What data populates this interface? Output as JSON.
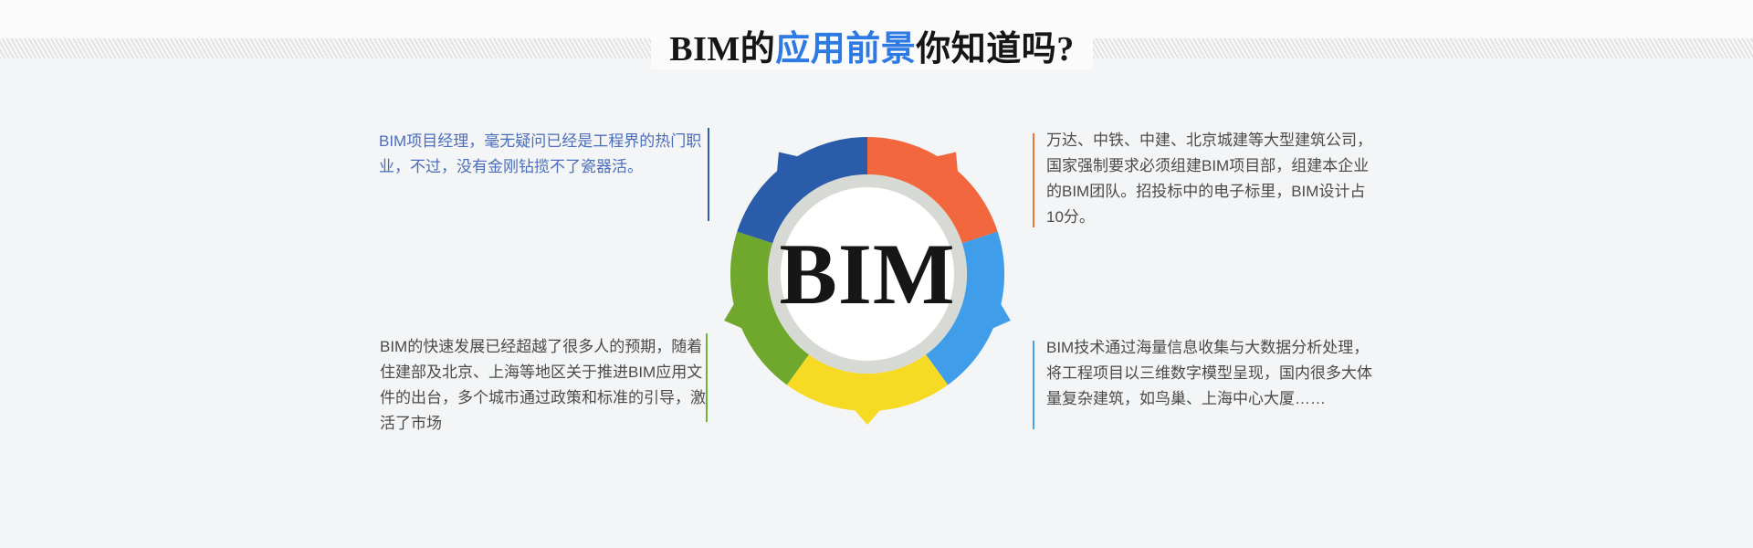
{
  "title": {
    "prefix": "BIM的",
    "highlight": "应用前景",
    "suffix": "你知道吗?"
  },
  "theme": {
    "highlight_color": "#2e7ae4",
    "page_background": "#f4f5f6",
    "hatch_line_color": "#d6d6d6"
  },
  "diagram": {
    "center_label": "BIM",
    "ring_inner_color": "#d7d9d4",
    "center_color": "#ffffff",
    "segments": [
      {
        "name": "orange",
        "color": "#f2673d",
        "start": 0,
        "end": 72
      },
      {
        "name": "sky-blue",
        "color": "#3f9de9",
        "start": 72,
        "end": 144
      },
      {
        "name": "yellow",
        "color": "#f6da23",
        "start": 144,
        "end": 216
      },
      {
        "name": "green",
        "color": "#70a82e",
        "start": 216,
        "end": 288
      },
      {
        "name": "blue",
        "color": "#2b5caa",
        "start": 288,
        "end": 360
      }
    ]
  },
  "callouts": {
    "top_left": {
      "accent_color": "#2f5fac",
      "text_color": "#4a6dbd",
      "lines": [
        "BIM项目经理，毫无疑问已经是工程界的热门职",
        "业，不过，没有金刚钻揽不了瓷器活。"
      ]
    },
    "top_right": {
      "accent_color": "#f2703f",
      "text_color": "#4a4a4a",
      "lines": [
        "万达、中铁、中建、北京城建等大型建筑公司，",
        "国家强制要求必须组建BIM项目部，组建本企业",
        "的BIM团队。招投标中的电子标里，BIM设计占",
        "10分。"
      ]
    },
    "bottom_left": {
      "accent_color": "#6db33a",
      "text_color": "#4a4a4a",
      "lines": [
        "BIM的快速发展已经超越了很多人的预期，随着",
        "住建部及北京、上海等地区关于推进BIM应用文",
        "件的出台，多个城市通过政策和标准的引导，激",
        "活了市场"
      ]
    },
    "bottom_right": {
      "accent_color": "#49a3e0",
      "text_color": "#4a4a4a",
      "lines": [
        "BIM技术通过海量信息收集与大数据分析处理，",
        "将工程项目以三维数字模型呈现，国内很多大体",
        "量复杂建筑，如鸟巢、上海中心大厦……"
      ]
    }
  }
}
